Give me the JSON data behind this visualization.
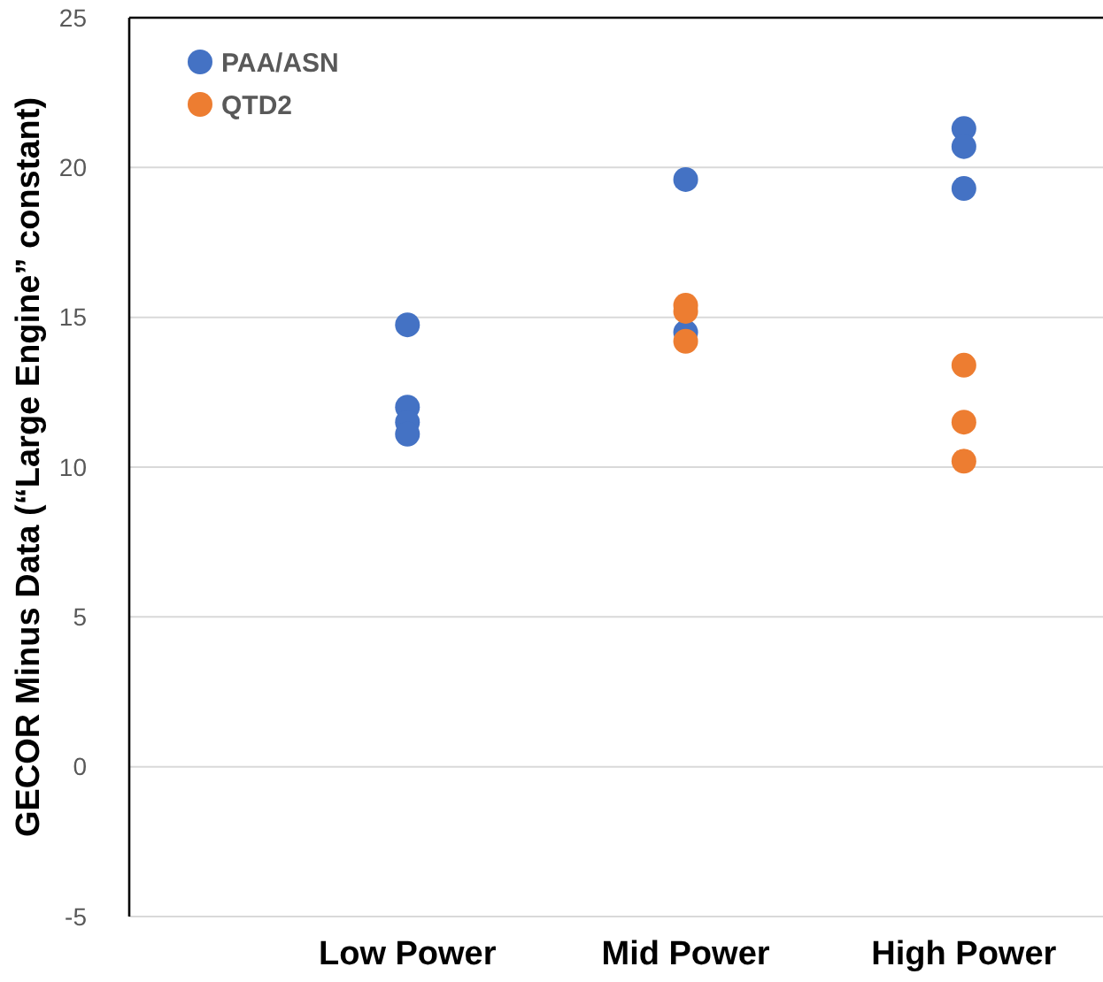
{
  "chart_data": {
    "type": "scatter",
    "ylabel": "GECOR Minus Data (“Large Engine” constant)",
    "categories": [
      "Low Power",
      "Mid Power",
      "High Power"
    ],
    "series": [
      {
        "name": "PAA/ASN",
        "color": "#4472c4",
        "x": [
          "Low Power",
          "Low Power",
          "Low Power",
          "Low Power",
          "Mid Power",
          "Mid Power",
          "High Power",
          "High Power",
          "High Power"
        ],
        "values": [
          14.75,
          12.0,
          11.5,
          11.1,
          19.6,
          14.5,
          21.3,
          20.7,
          19.3
        ]
      },
      {
        "name": "QTD2",
        "color": "#ed7d31",
        "x": [
          "Mid Power",
          "Mid Power",
          "Mid Power",
          "High Power",
          "High Power",
          "High Power"
        ],
        "values": [
          15.4,
          15.2,
          14.2,
          13.4,
          11.5,
          10.2
        ]
      }
    ],
    "ylim": [
      -5,
      25
    ],
    "yticks": [
      -5,
      0,
      5,
      10,
      15,
      20,
      25
    ],
    "grid": "y",
    "legend": "top left",
    "marker": "circle"
  }
}
